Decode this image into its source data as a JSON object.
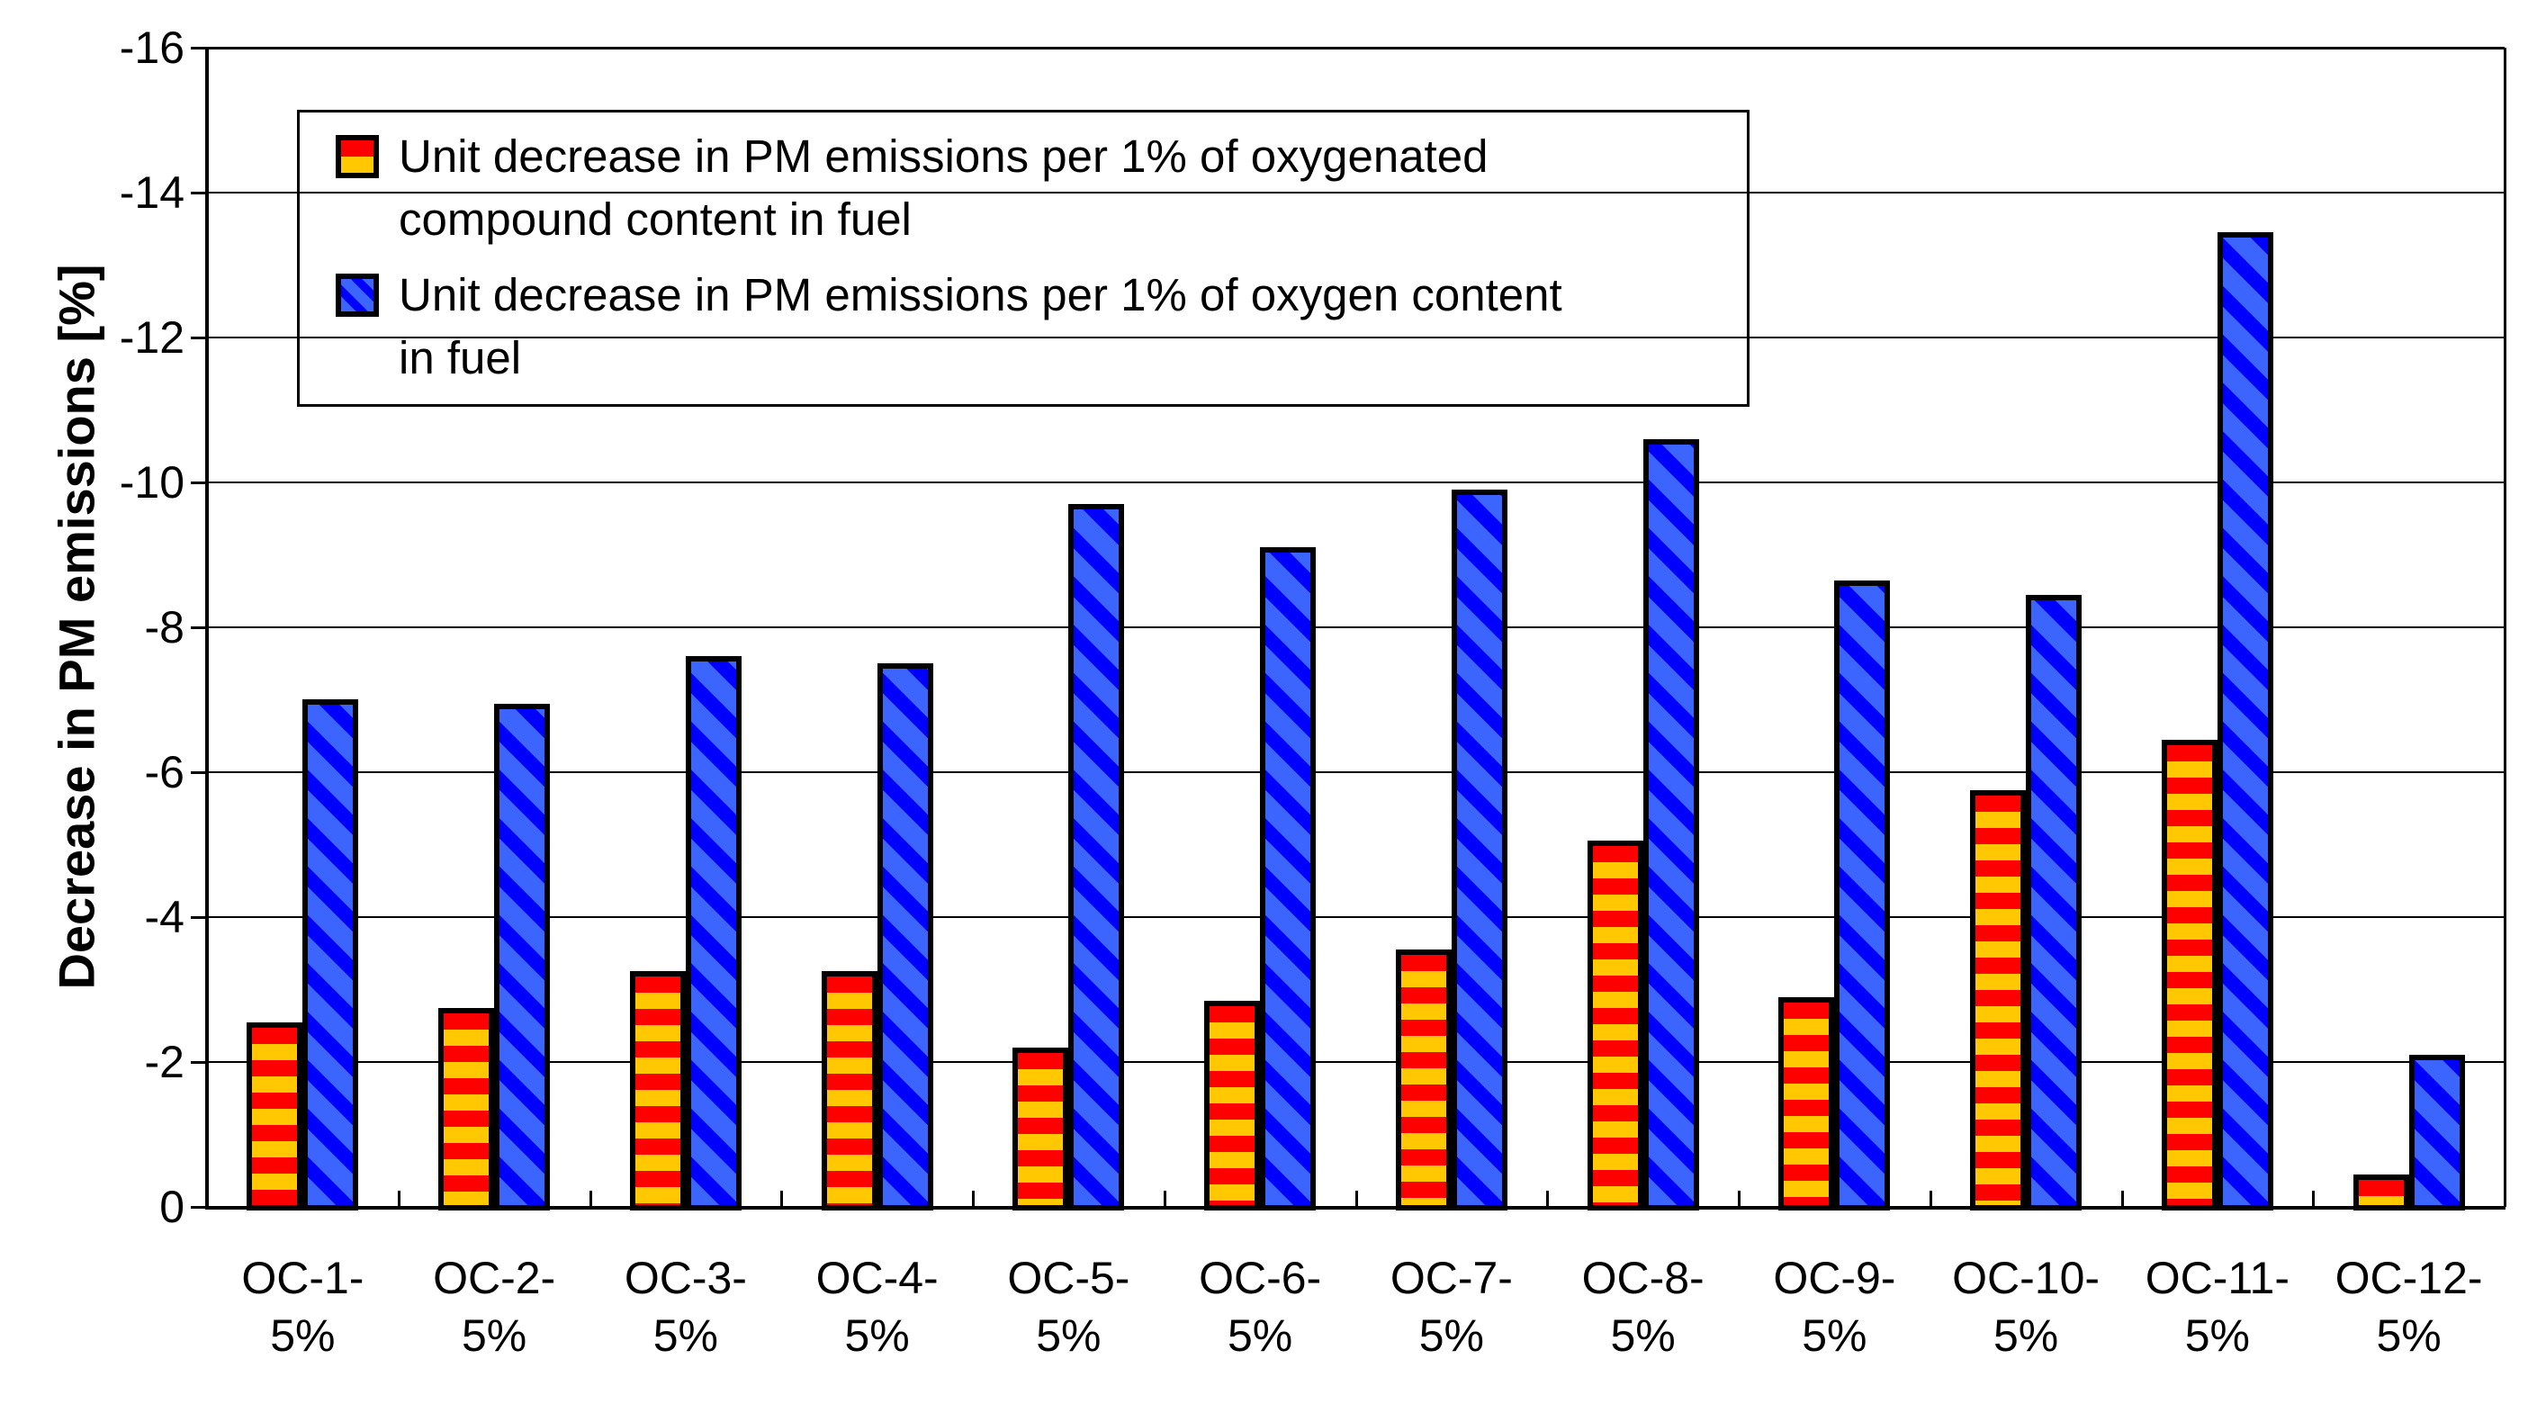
{
  "chart_data": {
    "type": "bar",
    "title": "",
    "xlabel": "",
    "ylabel": "Decrease in PM emissions [%]",
    "ylim": [
      0,
      -16
    ],
    "y_axis_inverted_display": "0 at bottom, -16 at top",
    "y_tick_labels": [
      "-16",
      "-14",
      "-12",
      "-10",
      "-8",
      "-6",
      "-4",
      "-2",
      "0"
    ],
    "grid": true,
    "legend_position": "inside-top-left",
    "categories": [
      "OC-1-5%",
      "OC-2-5%",
      "OC-3-5%",
      "OC-4-5%",
      "OC-5-5%",
      "OC-6-5%",
      "OC-7-5%",
      "OC-8-5%",
      "OC-9-5%",
      "OC-10-5%",
      "OC-11-5%",
      "OC-12-5%"
    ],
    "category_label_lines": [
      [
        "OC-1-",
        "5%"
      ],
      [
        "OC-2-",
        "5%"
      ],
      [
        "OC-3-",
        "5%"
      ],
      [
        "OC-4-",
        "5%"
      ],
      [
        "OC-5-",
        "5%"
      ],
      [
        "OC-6-",
        "5%"
      ],
      [
        "OC-7-",
        "5%"
      ],
      [
        "OC-8-",
        "5%"
      ],
      [
        "OC-9-",
        "5%"
      ],
      [
        "OC-10-",
        "5%"
      ],
      [
        "OC-11-",
        "5%"
      ],
      [
        "OC-12-",
        "5%"
      ]
    ],
    "series": [
      {
        "name": "Unit decrease in PM emissions per 1% of oxygenated compound content in fuel",
        "legend_lines": [
          "Unit decrease in PM emissions per 1% of oxygenated",
          "compound content in fuel"
        ],
        "pattern": "horizontal-stripes",
        "stripe_color_a": "#FF0000",
        "stripe_color_b": "#FFC800",
        "border_color": "#000000",
        "values": [
          -2.55,
          -2.75,
          -3.25,
          -3.25,
          -2.2,
          -2.85,
          -3.55,
          -5.05,
          -2.9,
          -5.75,
          -6.45,
          -0.45
        ]
      },
      {
        "name": "Unit decrease in PM emissions per 1% of oxygen content in fuel",
        "legend_lines": [
          "Unit decrease in PM emissions per 1% of oxygen content",
          "in fuel"
        ],
        "pattern": "diagonal-stripes",
        "stripe_color_a": "#3C64FF",
        "stripe_color_b": "#0000FF",
        "border_color": "#000000",
        "values": [
          -7.0,
          -6.95,
          -7.6,
          -7.5,
          -9.7,
          -9.1,
          -9.9,
          -10.6,
          -8.65,
          -8.45,
          -13.45,
          -2.1
        ]
      }
    ]
  }
}
